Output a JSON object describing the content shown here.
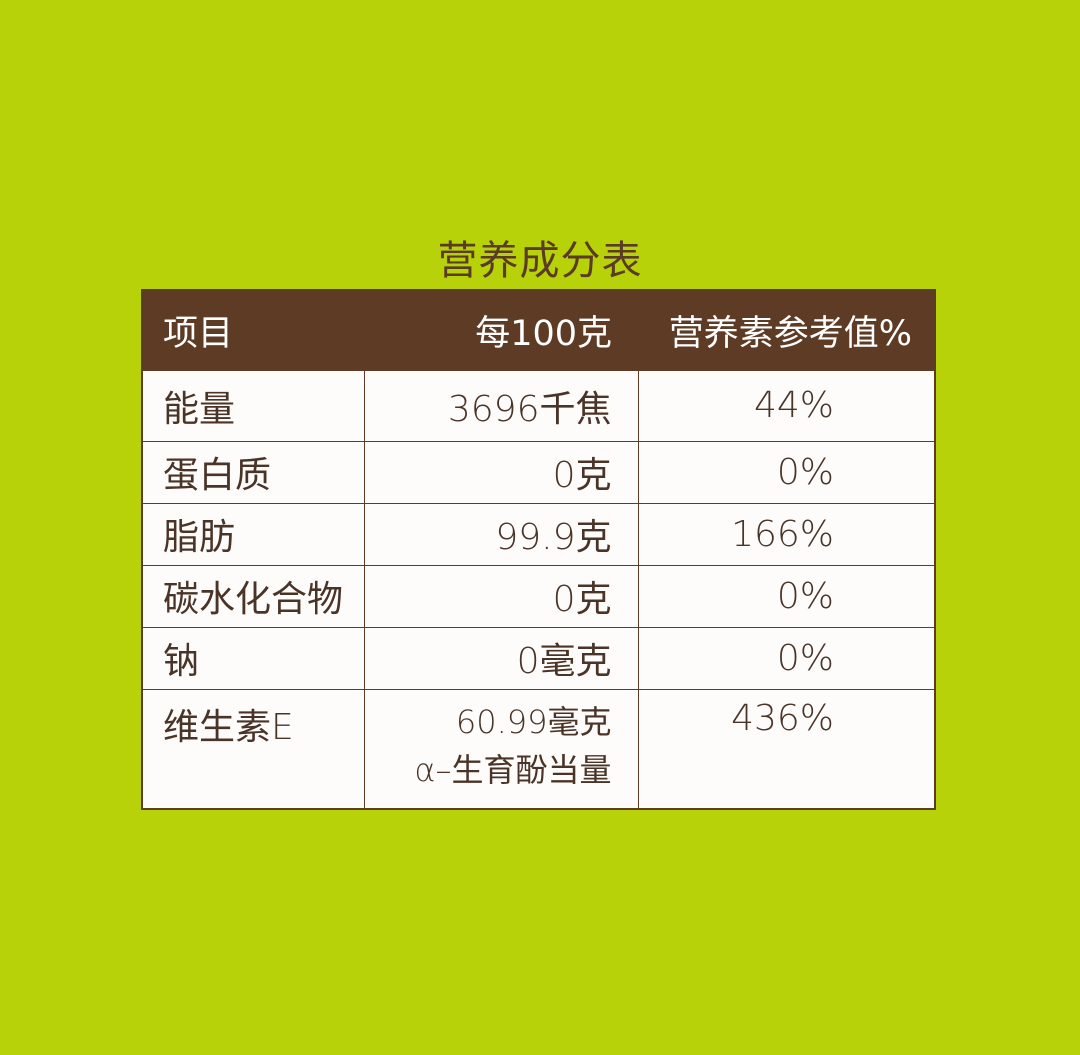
{
  "title": "营养成分表",
  "headers": [
    "项目",
    "每100克",
    "营养素参考值%"
  ],
  "rows": [
    {
      "item": "能量",
      "per100g": "3696千焦",
      "nrv": "44%"
    },
    {
      "item": "蛋白质",
      "per100g": "0克",
      "nrv": "0%"
    },
    {
      "item": "脂肪",
      "per100g": "99.9克",
      "nrv": "166%"
    },
    {
      "item": "碳水化合物",
      "per100g": "0克",
      "nrv": "0%"
    },
    {
      "item": "钠",
      "per100g": "0毫克",
      "nrv": "0%"
    },
    {
      "item": "维生素E",
      "per100g": "60.99毫克",
      "per100g_note": "α–生育酚当量",
      "nrv": "436%"
    }
  ],
  "colors": {
    "background": "#b8d20a",
    "header": "#5e3b25",
    "text": "#4a3428"
  }
}
